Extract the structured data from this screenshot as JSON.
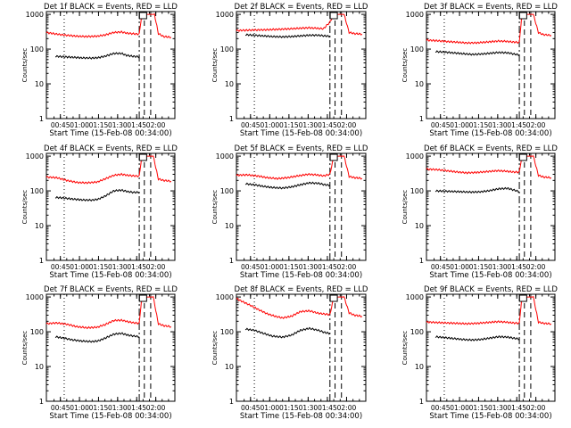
{
  "figure": {
    "background": "#ffffff",
    "axis_color": "#000000"
  },
  "colors": {
    "events": "#000000",
    "lld": "#ff0000"
  },
  "chart_data": [
    {
      "type": "line",
      "title": "Det 1f BLACK = Events, RED = LLD",
      "xlabel": "Start Time (15-Feb-08 00:34:00)",
      "ylabel": "Counts/sec",
      "xticklabels": [
        "00:45",
        "01:00",
        "01:15",
        "01:30",
        "01:45",
        "02:00"
      ],
      "yticklabels": [
        "1",
        "10",
        "100",
        "1000"
      ],
      "yscale": "log",
      "ylim": [
        1,
        1200
      ],
      "series": [
        {
          "x": [
            "00:41",
            "00:48",
            "00:55",
            "01:02",
            "01:10",
            "01:15",
            "01:20",
            "01:27",
            "01:33",
            "01:37",
            "01:42",
            "01:47"
          ],
          "y": [
            62,
            60,
            58,
            56,
            55,
            57,
            62,
            75,
            75,
            66,
            62,
            60
          ]
        },
        {
          "x": [
            "00:34",
            "00:42",
            "00:50",
            "00:58",
            "01:06",
            "01:14",
            "01:20",
            "01:27",
            "01:33",
            "01:38",
            "01:43",
            "01:47",
            "01:49",
            "01:53",
            "01:59",
            "02:02",
            "02:06",
            "02:12"
          ],
          "y": [
            300,
            270,
            250,
            235,
            230,
            235,
            255,
            300,
            310,
            285,
            275,
            270,
            1000,
            1000,
            1000,
            280,
            230,
            220
          ]
        }
      ]
    },
    {
      "type": "line",
      "title": "Det 2f BLACK = Events, RED = LLD",
      "xlabel": "Start Time (15-Feb-08 00:34:00)",
      "ylabel": "Counts/sec",
      "xticklabels": [
        "00:45",
        "01:00",
        "01:15",
        "01:30",
        "01:45",
        "02:00"
      ],
      "yticklabels": [
        "1",
        "10",
        "100",
        "1000"
      ],
      "yscale": "log",
      "ylim": [
        1,
        1200
      ],
      "series": [
        {
          "x": [
            "00:41",
            "00:48",
            "00:55",
            "01:02",
            "01:10",
            "01:17",
            "01:24",
            "01:31",
            "01:38",
            "01:43",
            "01:47"
          ],
          "y": [
            260,
            250,
            240,
            230,
            225,
            230,
            240,
            250,
            250,
            240,
            235
          ]
        },
        {
          "x": [
            "00:34",
            "00:42",
            "00:50",
            "00:58",
            "01:06",
            "01:14",
            "01:22",
            "01:30",
            "01:36",
            "01:42",
            "01:47",
            "01:50",
            "01:53",
            "01:58",
            "02:02",
            "02:06",
            "02:12"
          ],
          "y": [
            340,
            350,
            355,
            360,
            370,
            380,
            395,
            410,
            400,
            385,
            600,
            1000,
            1000,
            1000,
            300,
            280,
            270
          ]
        }
      ]
    },
    {
      "type": "line",
      "title": "Det 3f BLACK = Events, RED = LLD",
      "xlabel": "Start Time (15-Feb-08 00:34:00)",
      "ylabel": "Counts/sec",
      "xticklabels": [
        "00:45",
        "01:00",
        "01:15",
        "01:30",
        "01:45",
        "02:00"
      ],
      "yticklabels": [
        "1",
        "10",
        "100",
        "1000"
      ],
      "yscale": "log",
      "ylim": [
        1,
        1200
      ],
      "series": [
        {
          "x": [
            "00:41",
            "00:48",
            "00:55",
            "01:02",
            "01:10",
            "01:17",
            "01:24",
            "01:31",
            "01:38",
            "01:43",
            "01:47"
          ],
          "y": [
            85,
            82,
            78,
            74,
            70,
            72,
            76,
            80,
            78,
            72,
            68
          ]
        },
        {
          "x": [
            "00:34",
            "00:42",
            "00:50",
            "00:58",
            "01:06",
            "01:14",
            "01:22",
            "01:30",
            "01:36",
            "01:42",
            "01:47",
            "01:49",
            "01:53",
            "01:58",
            "02:02",
            "02:06",
            "02:12"
          ],
          "y": [
            180,
            175,
            165,
            158,
            150,
            152,
            160,
            170,
            168,
            160,
            155,
            1000,
            1000,
            1000,
            300,
            260,
            250
          ]
        }
      ]
    },
    {
      "type": "line",
      "title": "Det 4f BLACK = Events, RED = LLD",
      "xlabel": "Start Time (15-Feb-08 00:34:00)",
      "ylabel": "Counts/sec",
      "xticklabels": [
        "00:45",
        "01:00",
        "01:15",
        "01:30",
        "01:45",
        "02:00"
      ],
      "yticklabels": [
        "1",
        "10",
        "100",
        "1000"
      ],
      "yscale": "log",
      "ylim": [
        1,
        1200
      ],
      "series": [
        {
          "x": [
            "00:41",
            "00:48",
            "00:55",
            "01:02",
            "01:10",
            "01:15",
            "01:20",
            "01:27",
            "01:33",
            "01:38",
            "01:43",
            "01:47"
          ],
          "y": [
            65,
            62,
            58,
            55,
            54,
            58,
            70,
            100,
            105,
            95,
            90,
            92
          ]
        },
        {
          "x": [
            "00:34",
            "00:42",
            "00:50",
            "00:58",
            "01:06",
            "01:14",
            "01:20",
            "01:27",
            "01:33",
            "01:38",
            "01:43",
            "01:47",
            "01:49",
            "01:53",
            "01:58",
            "02:02",
            "02:06",
            "02:12"
          ],
          "y": [
            250,
            240,
            200,
            175,
            170,
            180,
            220,
            280,
            300,
            280,
            270,
            265,
            1000,
            1000,
            1000,
            220,
            200,
            190
          ]
        }
      ]
    },
    {
      "type": "line",
      "title": "Det 5f BLACK = Events, RED = LLD",
      "xlabel": "Start Time (15-Feb-08 00:34:00)",
      "ylabel": "Counts/sec",
      "xticklabels": [
        "00:45",
        "01:00",
        "01:15",
        "01:30",
        "01:45",
        "02:00"
      ],
      "yticklabels": [
        "1",
        "10",
        "100",
        "1000"
      ],
      "yscale": "log",
      "ylim": [
        1,
        1200
      ],
      "series": [
        {
          "x": [
            "00:41",
            "00:48",
            "00:55",
            "01:02",
            "01:10",
            "01:17",
            "01:24",
            "01:31",
            "01:38",
            "01:43",
            "01:47"
          ],
          "y": [
            160,
            150,
            135,
            125,
            120,
            130,
            150,
            170,
            165,
            150,
            145
          ]
        },
        {
          "x": [
            "00:34",
            "00:42",
            "00:50",
            "00:58",
            "01:06",
            "01:14",
            "01:22",
            "01:30",
            "01:36",
            "01:42",
            "01:47",
            "01:50",
            "01:53",
            "01:58",
            "02:02",
            "02:06",
            "02:12"
          ],
          "y": [
            280,
            290,
            270,
            240,
            225,
            240,
            270,
            300,
            290,
            270,
            300,
            1000,
            1000,
            1000,
            260,
            240,
            230
          ]
        }
      ]
    },
    {
      "type": "line",
      "title": "Det 6f BLACK = Events, RED = LLD",
      "xlabel": "Start Time (15-Feb-08 00:34:00)",
      "ylabel": "Counts/sec",
      "xticklabels": [
        "00:45",
        "01:00",
        "01:15",
        "01:30",
        "01:45",
        "02:00"
      ],
      "yticklabels": [
        "1",
        "10",
        "100",
        "1000"
      ],
      "yscale": "log",
      "ylim": [
        1,
        1200
      ],
      "series": [
        {
          "x": [
            "00:41",
            "00:48",
            "00:55",
            "01:02",
            "01:10",
            "01:17",
            "01:24",
            "01:31",
            "01:38",
            "01:43",
            "01:47"
          ],
          "y": [
            100,
            98,
            96,
            94,
            92,
            94,
            102,
            115,
            118,
            105,
            95
          ]
        },
        {
          "x": [
            "00:34",
            "00:42",
            "00:50",
            "00:58",
            "01:06",
            "01:14",
            "01:22",
            "01:30",
            "01:36",
            "01:42",
            "01:47",
            "01:49",
            "01:53",
            "01:58",
            "02:02",
            "02:06",
            "02:12"
          ],
          "y": [
            420,
            410,
            380,
            350,
            330,
            340,
            360,
            380,
            370,
            350,
            345,
            1000,
            1000,
            1000,
            280,
            250,
            240
          ]
        }
      ]
    },
    {
      "type": "line",
      "title": "Det 7f BLACK = Events, RED = LLD",
      "xlabel": "Start Time (15-Feb-08 00:34:00)",
      "ylabel": "Counts/sec",
      "xticklabels": [
        "00:45",
        "01:00",
        "01:15",
        "01:30",
        "01:45",
        "02:00"
      ],
      "yticklabels": [
        "1",
        "10",
        "100",
        "1000"
      ],
      "yscale": "log",
      "ylim": [
        1,
        1200
      ],
      "series": [
        {
          "x": [
            "00:41",
            "00:48",
            "00:55",
            "01:02",
            "01:10",
            "01:15",
            "01:20",
            "01:27",
            "01:33",
            "01:38",
            "01:43",
            "01:47"
          ],
          "y": [
            72,
            65,
            58,
            54,
            52,
            55,
            65,
            85,
            90,
            80,
            75,
            72
          ]
        },
        {
          "x": [
            "00:34",
            "00:42",
            "00:50",
            "00:58",
            "01:06",
            "01:14",
            "01:20",
            "01:27",
            "01:33",
            "01:38",
            "01:43",
            "01:47",
            "01:49",
            "01:53",
            "01:58",
            "02:02",
            "02:06",
            "02:12"
          ],
          "y": [
            170,
            180,
            165,
            140,
            130,
            135,
            160,
            210,
            215,
            195,
            180,
            175,
            1000,
            1000,
            1000,
            170,
            150,
            140
          ]
        }
      ]
    },
    {
      "type": "line",
      "title": "Det 8f BLACK = Events, RED = LLD",
      "xlabel": "Start Time (15-Feb-08 00:34:00)",
      "ylabel": "Counts/sec",
      "xticklabels": [
        "00:45",
        "01:00",
        "01:15",
        "01:30",
        "01:45",
        "02:00"
      ],
      "yticklabels": [
        "1",
        "10",
        "100",
        "1000"
      ],
      "yscale": "log",
      "ylim": [
        1,
        1200
      ],
      "series": [
        {
          "x": [
            "00:41",
            "00:48",
            "00:55",
            "01:02",
            "01:10",
            "01:17",
            "01:24",
            "01:31",
            "01:38",
            "01:43",
            "01:47"
          ],
          "y": [
            120,
            110,
            90,
            75,
            70,
            80,
            110,
            125,
            110,
            95,
            90
          ]
        },
        {
          "x": [
            "00:34",
            "00:40",
            "00:46",
            "00:52",
            "00:58",
            "01:04",
            "01:10",
            "01:17",
            "01:24",
            "01:31",
            "01:38",
            "01:44",
            "01:47",
            "01:50",
            "01:53",
            "01:58",
            "02:02",
            "02:06",
            "02:12"
          ],
          "y": [
            900,
            700,
            550,
            420,
            330,
            280,
            250,
            280,
            380,
            400,
            340,
            320,
            310,
            1000,
            1000,
            1000,
            350,
            300,
            280
          ]
        }
      ]
    },
    {
      "type": "line",
      "title": "Det 9f BLACK = Events, RED = LLD",
      "xlabel": "Start Time (15-Feb-08 00:34:00)",
      "ylabel": "Counts/sec",
      "xticklabels": [
        "00:45",
        "01:00",
        "01:15",
        "01:30",
        "01:45",
        "02:00"
      ],
      "yticklabels": [
        "1",
        "10",
        "100",
        "1000"
      ],
      "yscale": "log",
      "ylim": [
        1,
        1200
      ],
      "series": [
        {
          "x": [
            "00:41",
            "00:48",
            "00:55",
            "01:02",
            "01:10",
            "01:17",
            "01:24",
            "01:31",
            "01:38",
            "01:43",
            "01:47"
          ],
          "y": [
            72,
            68,
            64,
            60,
            58,
            60,
            66,
            72,
            70,
            65,
            62
          ]
        },
        {
          "x": [
            "00:34",
            "00:42",
            "00:50",
            "00:58",
            "01:06",
            "01:14",
            "01:22",
            "01:30",
            "01:36",
            "01:42",
            "01:47",
            "01:49",
            "01:53",
            "01:58",
            "02:02",
            "02:06",
            "02:12"
          ],
          "y": [
            190,
            185,
            180,
            175,
            170,
            175,
            185,
            195,
            190,
            180,
            175,
            1000,
            1000,
            1000,
            190,
            175,
            170
          ]
        }
      ]
    }
  ]
}
